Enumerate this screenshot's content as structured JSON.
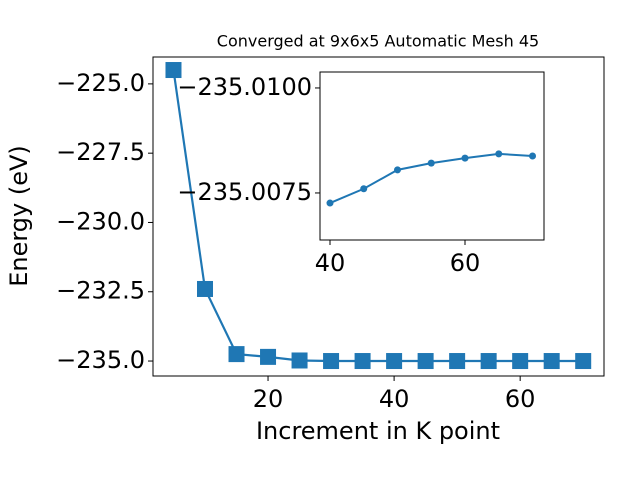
{
  "chart_data": [
    {
      "type": "line",
      "title": "Converged at 9x6x5 Automatic Mesh 45",
      "xlabel": "Increment in K point",
      "ylabel": "Energy (eV)",
      "x": [
        5,
        10,
        15,
        20,
        25,
        30,
        35,
        40,
        45,
        50,
        55,
        60,
        65,
        70
      ],
      "values": [
        -224.5,
        -232.4,
        -234.75,
        -234.85,
        -234.98,
        -235.0,
        -235.0,
        -235.0,
        -235.0,
        -235.0,
        -235.0,
        -235.0,
        -235.0,
        -235.0
      ],
      "color": "#1f77b4",
      "marker": "square",
      "xlim": [
        1.75,
        73.3
      ],
      "xticks": [
        20,
        40,
        60
      ],
      "ylim": [
        -235.54,
        -224.03
      ],
      "yticks": [
        {
          "value": -235,
          "label": "−235.0"
        },
        {
          "value": -232.5,
          "label": "−232.5"
        },
        {
          "value": -230,
          "label": "−230.0"
        },
        {
          "value": -227.5,
          "label": "−227.5"
        },
        {
          "value": -225,
          "label": "−225.0"
        }
      ]
    },
    {
      "type": "line",
      "x": [
        40,
        45,
        50,
        55,
        60,
        65,
        70
      ],
      "values": [
        -235.00726,
        -235.0076,
        -235.00805,
        -235.00821,
        -235.00833,
        -235.00843,
        -235.00838
      ],
      "color": "#1f77b4",
      "marker": "circle",
      "xlim": [
        38.52,
        71.7
      ],
      "xticks": [
        40,
        60
      ],
      "ylim": [
        -235.00638,
        -235.01038
      ],
      "yticks": [
        {
          "value": -235.0075,
          "label": "−235.0075"
        },
        {
          "value": -235.01,
          "label": "−235.0100"
        }
      ]
    }
  ]
}
